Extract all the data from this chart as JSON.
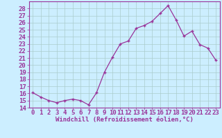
{
  "x": [
    0,
    1,
    2,
    3,
    4,
    5,
    6,
    7,
    8,
    9,
    10,
    11,
    12,
    13,
    14,
    15,
    16,
    17,
    18,
    19,
    20,
    21,
    22,
    23
  ],
  "y": [
    16.1,
    15.5,
    15.0,
    14.7,
    15.0,
    15.2,
    15.0,
    14.4,
    16.1,
    19.0,
    21.1,
    23.0,
    23.4,
    25.2,
    25.6,
    26.2,
    27.3,
    28.4,
    26.4,
    24.1,
    24.8,
    22.9,
    22.4,
    20.7
  ],
  "line_color": "#993399",
  "marker": "+",
  "bg_color": "#cceeff",
  "grid_color": "#aacccc",
  "xlabel": "Windchill (Refroidissement éolien,°C)",
  "xlabel_color": "#993399",
  "tick_color": "#993399",
  "ylim": [
    14,
    29
  ],
  "xlim": [
    -0.5,
    23.5
  ],
  "yticks": [
    14,
    15,
    16,
    17,
    18,
    19,
    20,
    21,
    22,
    23,
    24,
    25,
    26,
    27,
    28
  ],
  "xticks": [
    0,
    1,
    2,
    3,
    4,
    5,
    6,
    7,
    8,
    9,
    10,
    11,
    12,
    13,
    14,
    15,
    16,
    17,
    18,
    19,
    20,
    21,
    22,
    23
  ],
  "spine_color": "#993399",
  "font_size": 6.5
}
